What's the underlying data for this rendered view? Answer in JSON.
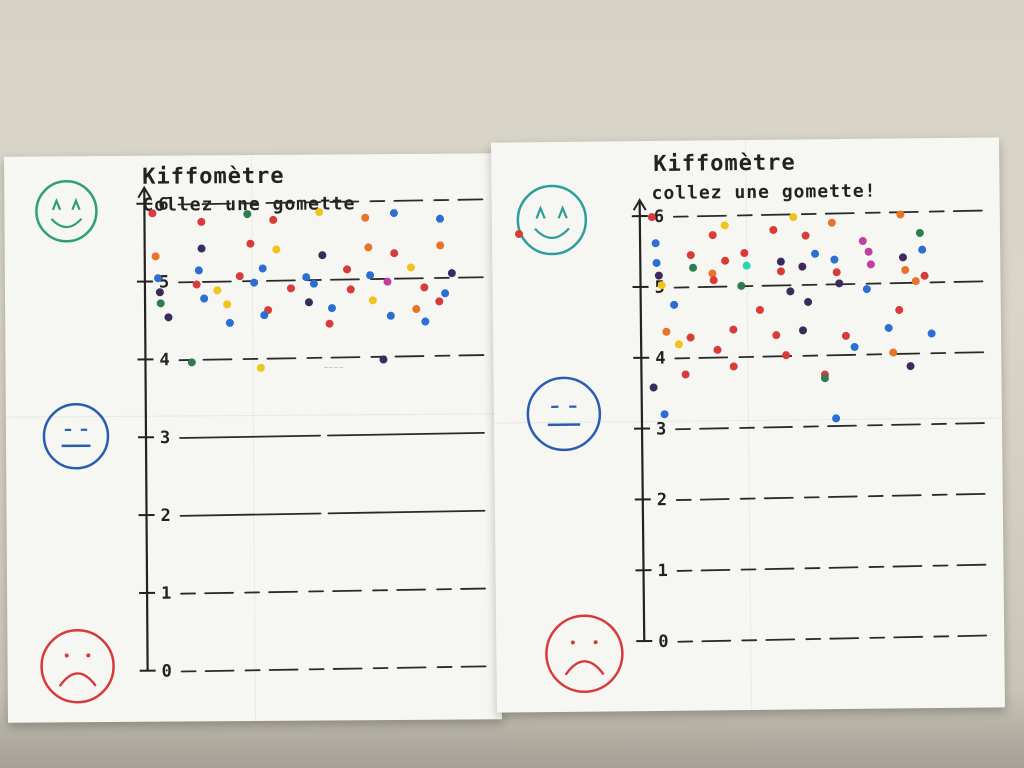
{
  "left_poster": {
    "title": "Kiffomètre",
    "subtitle": "Collez une gomette",
    "scale_labels": [
      "0",
      "1",
      "2",
      "3",
      "4",
      "5",
      "6"
    ],
    "faces": [
      {
        "mood": "happy",
        "color": "#2f9e7e"
      },
      {
        "mood": "neutral",
        "color": "#2a5db0"
      },
      {
        "mood": "sad",
        "color": "#d63a3a"
      }
    ],
    "dot_rows": [
      {
        "level": 5.8,
        "colors": [
          "#d93a3a",
          "#d93a3a",
          "#2e7d4f",
          "#d93a3a",
          "#f0c419",
          "#e8742a",
          "#2a6fd1",
          "#2a6fd1"
        ]
      },
      {
        "level": 5.4,
        "colors": [
          "#e8742a",
          "#3b2a5e",
          "#d93a3a",
          "#f0c419",
          "#3b2a5e",
          "#e8742a",
          "#d93a3a",
          "#e8742a"
        ]
      },
      {
        "level": 5.1,
        "colors": [
          "#2a6fd1",
          "#2a6fd1",
          "#d93a3a",
          "#2a6fd1",
          "#2a6fd1",
          "#d93a3a",
          "#2a6fd1",
          "#f0c419",
          "#3b2a5e"
        ]
      },
      {
        "level": 4.9,
        "colors": [
          "#3b2a5e",
          "#d93a3a",
          "#f0c419",
          "#2a6fd1",
          "#d93a3a",
          "#2a6fd1",
          "#d93a3a",
          "#c23fa0",
          "#d93a3a",
          "#2a6fd1"
        ]
      },
      {
        "level": 4.7,
        "colors": [
          "#2e7d4f",
          "#2a6fd1",
          "#f0c419",
          "#d93a3a",
          "#3b2a5e",
          "#2a6fd1",
          "#f0c419",
          "#e8742a",
          "#d93a3a"
        ]
      },
      {
        "level": 4.5,
        "colors": [
          "#3b2a5e",
          "#2a6fd1",
          "#2a6fd1",
          "#d93a3a",
          "#2a6fd1",
          "#2a6fd1"
        ]
      },
      {
        "level": 3.9,
        "colors": [
          "#2e7d4f",
          "#f0c419",
          "#3b2a5e"
        ]
      }
    ]
  },
  "right_poster": {
    "title": "Kiffomètre",
    "subtitle": "collez une gomette!",
    "scale_labels": [
      "0",
      "1",
      "2",
      "3",
      "4",
      "5",
      "6"
    ],
    "faces": [
      {
        "mood": "happy",
        "color": "#2f9e9a"
      },
      {
        "mood": "neutral",
        "color": "#2a5db0"
      },
      {
        "mood": "sad",
        "color": "#d63a3a"
      }
    ],
    "dot_rows": [
      {
        "level": 5.9,
        "colors": [
          "#d93a3a",
          "#f0c419",
          "#f0c419",
          "#e8742a",
          "#e8742a"
        ]
      },
      {
        "level": 5.7,
        "colors": [
          "#2a6fd1",
          "#d93a3a",
          "#d93a3a",
          "#d93a3a",
          "#c23fa0",
          "#2e7d4f"
        ]
      },
      {
        "level": 5.4,
        "colors": [
          "#2a6fd1",
          "#d93a3a",
          "#d93a3a",
          "#d93a3a",
          "#3b2a5e",
          "#2a6fd1",
          "#2a6fd1",
          "#c23fa0",
          "#3b2a5e",
          "#2a6fd1"
        ]
      },
      {
        "level": 5.2,
        "colors": [
          "#3b2a5e",
          "#2e7d4f",
          "#e8742a",
          "#2dd4b0",
          "#d93a3a",
          "#3b2a5e",
          "#d93a3a",
          "#c23fa0",
          "#e8742a",
          "#d93a3a"
        ]
      },
      {
        "level": 5.0,
        "colors": [
          "#f0c419",
          "#d93a3a",
          "#2e7d4f",
          "#3b2a5e",
          "#3b2a5e",
          "#2a6fd1",
          "#e8742a"
        ]
      },
      {
        "level": 4.7,
        "colors": [
          "#2a6fd1",
          "#d93a3a",
          "#3b2a5e",
          "#d93a3a"
        ]
      },
      {
        "level": 4.3,
        "colors": [
          "#e8742a",
          "#d93a3a",
          "#d93a3a",
          "#d93a3a",
          "#3b2a5e",
          "#d93a3a",
          "#2a6fd1",
          "#2a6fd1"
        ]
      },
      {
        "level": 4.1,
        "colors": [
          "#f0c419",
          "#d93a3a",
          "#d93a3a",
          "#2a6fd1",
          "#e8742a"
        ]
      },
      {
        "level": 3.8,
        "colors": [
          "#d93a3a",
          "#d93a3a",
          "#d93a3a",
          "#3b2a5e"
        ]
      },
      {
        "level": 3.6,
        "colors": [
          "#3b2a5e",
          "#2e7d4f"
        ]
      },
      {
        "level": 3.2,
        "colors": [
          "#2a6fd1",
          "#2a6fd1"
        ]
      }
    ]
  },
  "stray_dot": {
    "color": "#d93a3a"
  }
}
